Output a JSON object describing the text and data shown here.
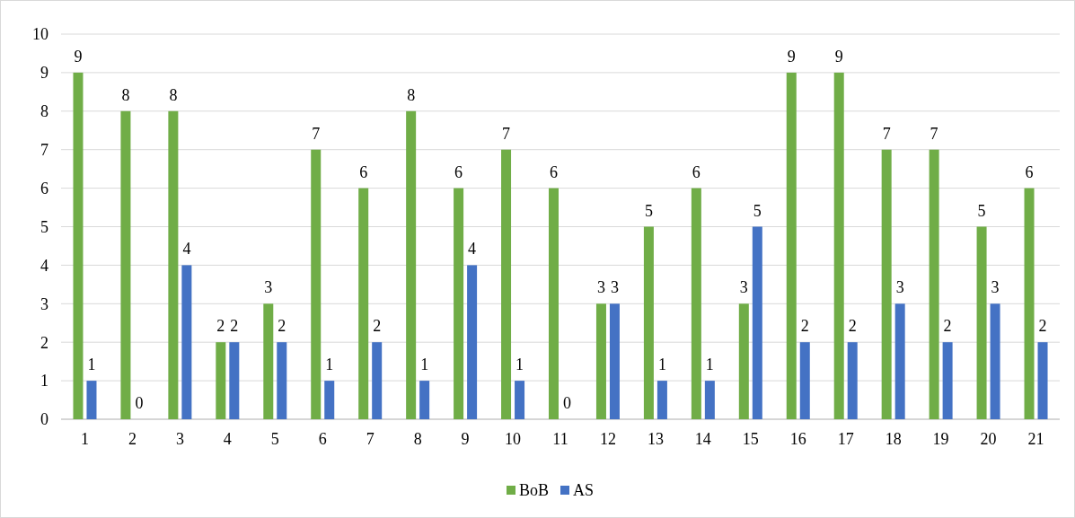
{
  "chart_data": {
    "type": "bar",
    "categories": [
      "1",
      "2",
      "3",
      "4",
      "5",
      "6",
      "7",
      "8",
      "9",
      "10",
      "11",
      "12",
      "13",
      "14",
      "15",
      "16",
      "17",
      "18",
      "19",
      "20",
      "21"
    ],
    "series": [
      {
        "name": "BoB",
        "color": "#70ad47",
        "values": [
          9,
          8,
          8,
          2,
          3,
          7,
          6,
          8,
          6,
          7,
          6,
          3,
          5,
          6,
          3,
          9,
          9,
          7,
          7,
          5,
          6
        ]
      },
      {
        "name": "AS",
        "color": "#4472c4",
        "values": [
          1,
          0,
          4,
          2,
          2,
          1,
          2,
          1,
          4,
          1,
          0,
          3,
          1,
          1,
          5,
          2,
          2,
          3,
          2,
          3,
          2
        ]
      }
    ],
    "ylim": [
      0,
      10
    ],
    "yticks": [
      0,
      1,
      2,
      3,
      4,
      5,
      6,
      7,
      8,
      9,
      10
    ],
    "grid": "y",
    "legend": "bottom",
    "data_labels": true
  }
}
